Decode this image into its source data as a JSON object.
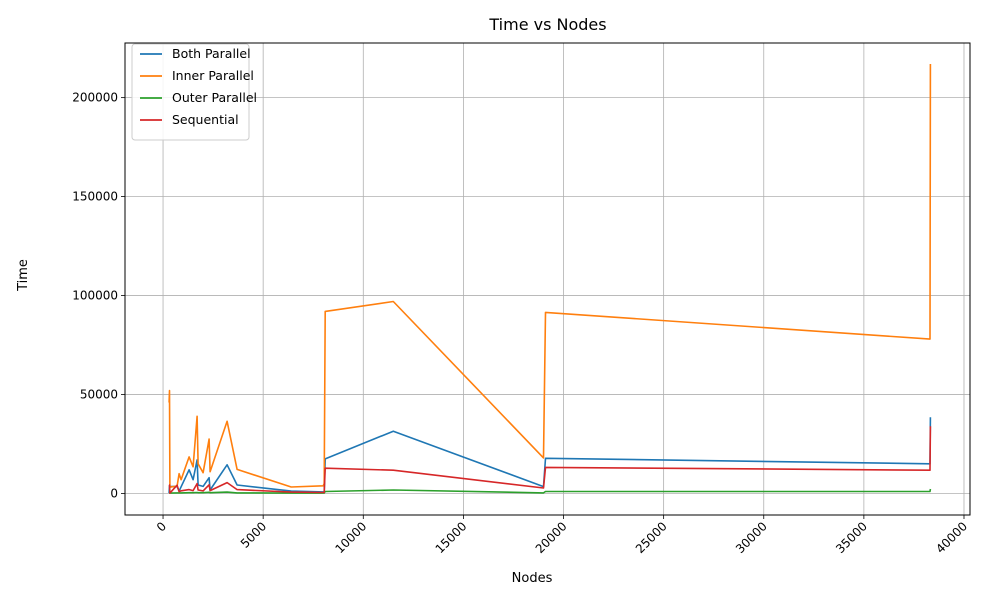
{
  "chart_data": {
    "type": "line",
    "title": "Time vs Nodes",
    "xlabel": "Nodes",
    "ylabel": "Time",
    "xlim": [
      -1900,
      40300
    ],
    "ylim": [
      -10850,
      227600
    ],
    "xticks": [
      0,
      5000,
      10000,
      15000,
      20000,
      25000,
      30000,
      35000,
      40000
    ],
    "yticks": [
      0,
      50000,
      100000,
      150000,
      200000
    ],
    "xtick_labels": [
      "0",
      "5000",
      "10000",
      "15000",
      "20000",
      "25000",
      "30000",
      "35000",
      "40000"
    ],
    "ytick_labels": [
      "0",
      "50000",
      "100000",
      "150000",
      "200000"
    ],
    "grid": true,
    "legend_position": "top-left",
    "series": [
      {
        "name": "Both Parallel",
        "color": "#1f77b4",
        "x": [
          300,
          320,
          340,
          700,
          800,
          900,
          1300,
          1500,
          1700,
          1750,
          2000,
          2300,
          2350,
          3200,
          3700,
          6400,
          8000,
          8050,
          8100,
          11500,
          19000,
          19100,
          38300,
          38320
        ],
        "y": [
          200,
          3800,
          3500,
          3600,
          1200,
          3400,
          12000,
          7000,
          17000,
          4300,
          3600,
          8000,
          1800,
          14500,
          4300,
          1200,
          800,
          700,
          17500,
          31500,
          3500,
          17800,
          15000,
          38500
        ]
      },
      {
        "name": "Inner Parallel",
        "color": "#ff7f0e",
        "x": [
          300,
          320,
          340,
          700,
          800,
          900,
          1300,
          1500,
          1700,
          1750,
          2000,
          2300,
          2350,
          3200,
          3700,
          6400,
          8000,
          8050,
          8100,
          11500,
          19000,
          19100,
          38300,
          38320
        ],
        "y": [
          46000,
          52000,
          3200,
          3800,
          10000,
          7000,
          18500,
          13500,
          39000,
          15000,
          10500,
          27500,
          11000,
          36500,
          12200,
          3300,
          3900,
          5000,
          92000,
          97000,
          18000,
          91500,
          78000,
          217000
        ]
      },
      {
        "name": "Outer Parallel",
        "color": "#2ca02c",
        "x": [
          300,
          320,
          340,
          700,
          800,
          900,
          1300,
          1500,
          1700,
          1750,
          2000,
          2300,
          2350,
          3200,
          3700,
          6400,
          8000,
          8050,
          8100,
          11500,
          19000,
          19100,
          38300,
          38320
        ],
        "y": [
          200,
          200,
          200,
          300,
          300,
          300,
          400,
          400,
          500,
          400,
          400,
          600,
          400,
          700,
          300,
          200,
          200,
          200,
          1000,
          1800,
          300,
          1000,
          1000,
          2300
        ]
      },
      {
        "name": "Sequential",
        "color": "#d62728",
        "x": [
          300,
          320,
          340,
          700,
          800,
          900,
          1300,
          1500,
          1700,
          1750,
          2000,
          2300,
          2350,
          3200,
          3700,
          6400,
          8000,
          8050,
          8100,
          11500,
          19000,
          19100,
          38300,
          38320
        ],
        "y": [
          4500,
          4300,
          200,
          4200,
          900,
          1400,
          2000,
          1500,
          5000,
          1800,
          1300,
          4400,
          1500,
          5500,
          2000,
          700,
          500,
          500,
          12800,
          11800,
          2800,
          13200,
          11800,
          34000
        ]
      }
    ]
  }
}
